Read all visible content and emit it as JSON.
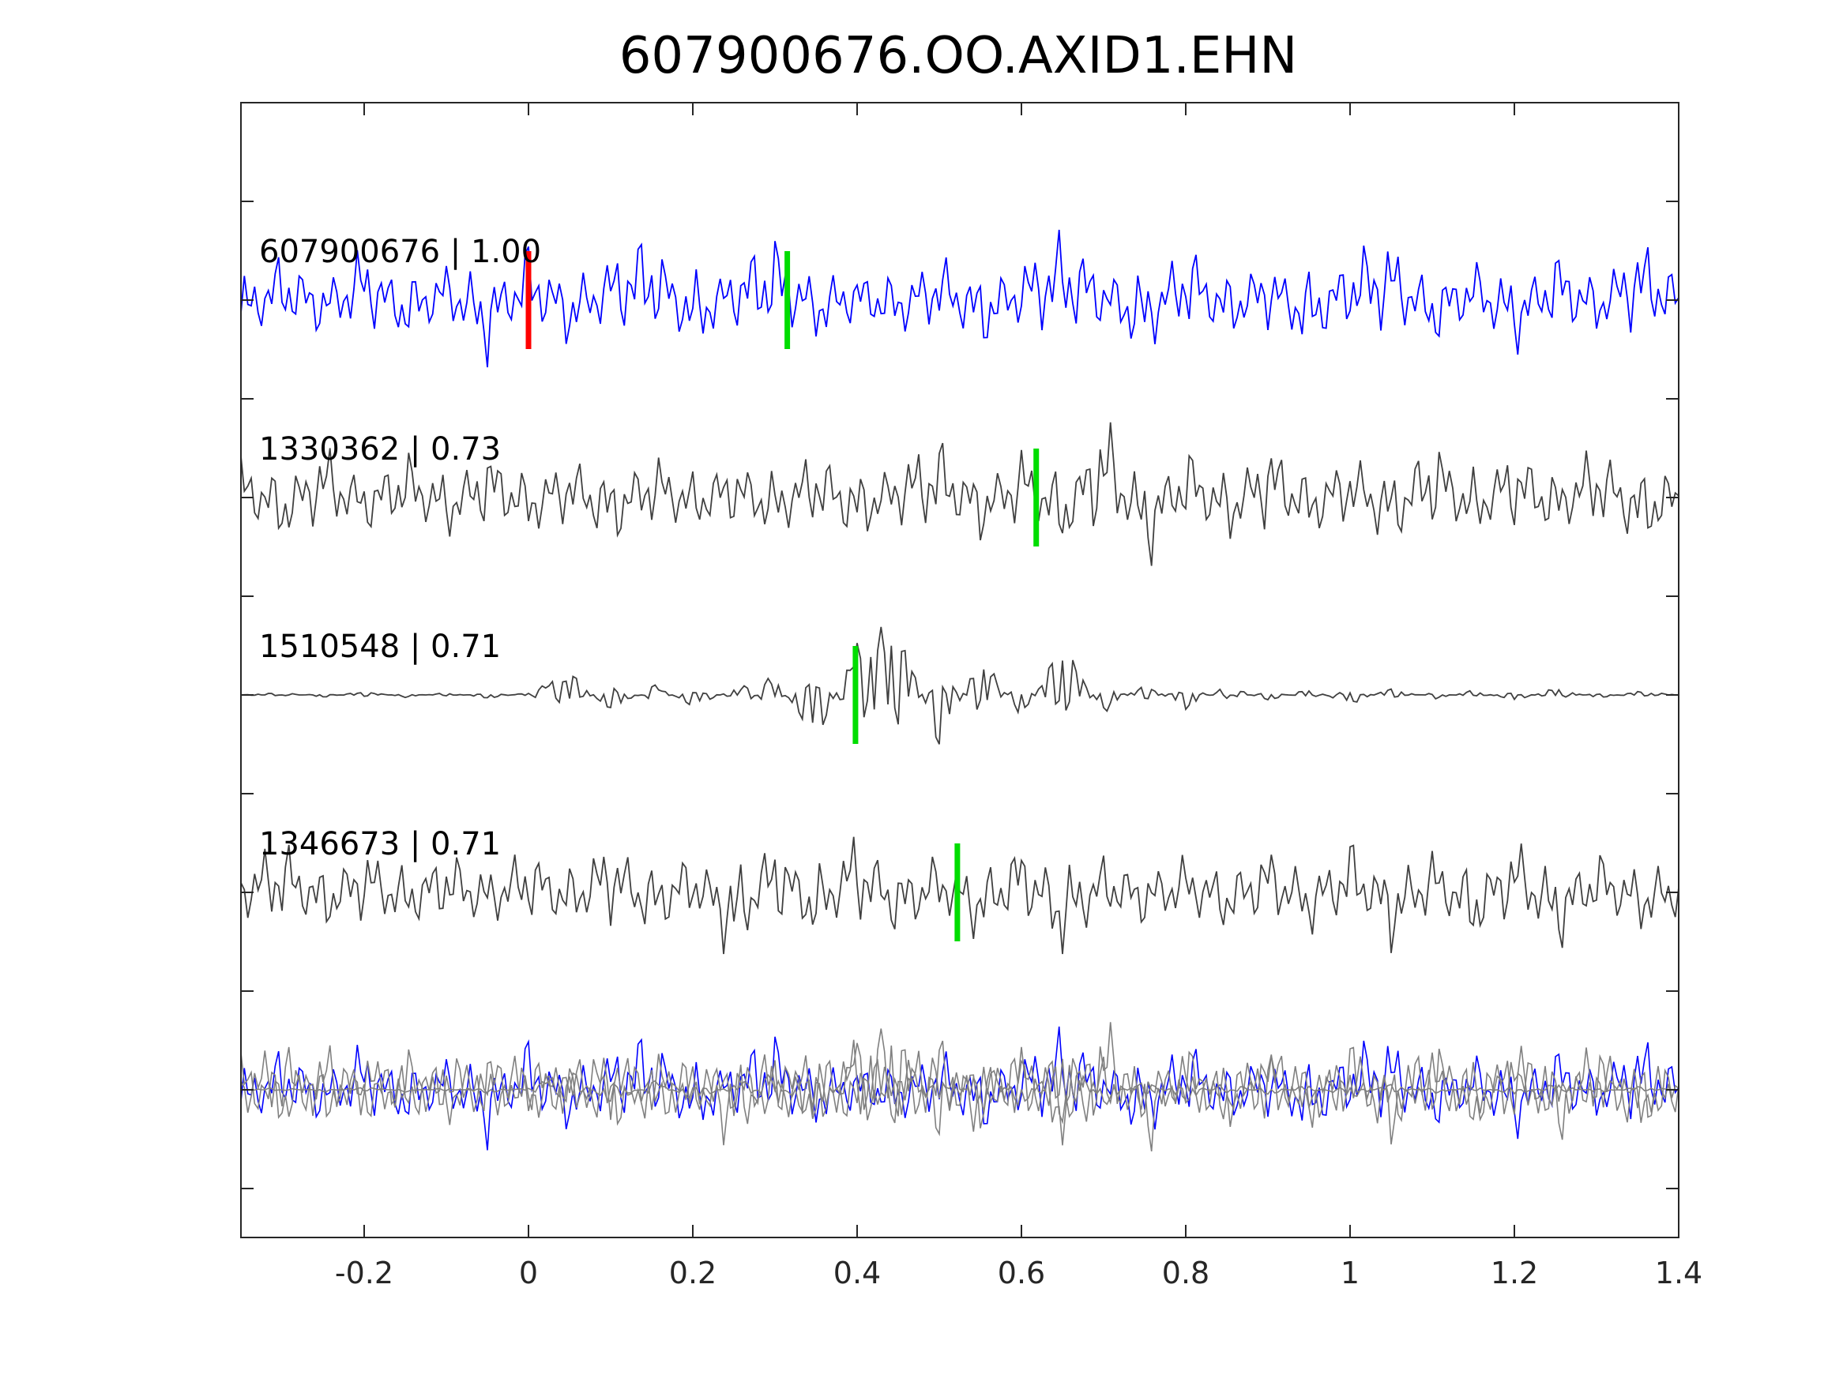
{
  "chart_data": {
    "type": "line",
    "title": "607900676.OO.AXID1.EHN",
    "xlabel": "",
    "ylabel": "",
    "xlim": [
      -0.35,
      1.4
    ],
    "xticks": [
      -0.2,
      0,
      0.2,
      0.4,
      0.6,
      0.8,
      1,
      1.2,
      1.4
    ],
    "xtick_labels": [
      "-0.2",
      "0",
      "0.2",
      "0.4",
      "0.6",
      "0.8",
      "1",
      "1.2",
      "1.4"
    ],
    "grid": false,
    "legend": "none",
    "colors": {
      "main_trace": "#0000ff",
      "other_trace": "#404040",
      "overlay_trace": "#808080",
      "reference_pick": "#ff0000",
      "pick": "#00dd00",
      "axis": "#262626"
    },
    "series": [
      {
        "label": "607900676 | 1.00",
        "color": "#0000ff",
        "reference_pick_time": 0.0,
        "pick_time": 0.315,
        "x": [
          -0.35,
          -0.3,
          -0.25,
          -0.2,
          -0.15,
          -0.1,
          -0.05,
          0.0,
          0.05,
          0.1,
          0.15,
          0.2,
          0.25,
          0.3,
          0.35,
          0.4,
          0.45,
          0.5,
          0.55,
          0.6,
          0.65,
          0.7,
          0.75,
          0.8,
          0.85,
          0.9,
          0.95,
          1.0,
          1.05,
          1.1,
          1.15,
          1.2,
          1.25,
          1.3,
          1.35,
          1.4
        ],
        "y": [
          -0.4,
          0.35,
          -0.2,
          0.45,
          -0.3,
          0.2,
          -0.55,
          0.5,
          -0.35,
          0.3,
          0.6,
          -0.45,
          0.2,
          0.55,
          -0.25,
          0.1,
          -0.2,
          0.35,
          -0.4,
          0.2,
          0.6,
          0.1,
          -0.5,
          0.55,
          -0.3,
          0.3,
          -0.45,
          0.35,
          0.5,
          -0.35,
          0.25,
          -0.45,
          0.4,
          -0.2,
          0.55,
          0.0
        ]
      },
      {
        "label": "1330362 | 0.73",
        "color": "#404040",
        "pick_time": 0.618,
        "x": [
          -0.35,
          -0.3,
          -0.25,
          -0.2,
          -0.15,
          -0.1,
          -0.05,
          0.0,
          0.05,
          0.1,
          0.15,
          0.2,
          0.25,
          0.3,
          0.35,
          0.4,
          0.45,
          0.5,
          0.55,
          0.6,
          0.65,
          0.7,
          0.75,
          0.8,
          0.85,
          0.9,
          0.95,
          1.0,
          1.05,
          1.1,
          1.15,
          1.2,
          1.25,
          1.3,
          1.35,
          1.4
        ],
        "y": [
          0.3,
          -0.35,
          0.45,
          -0.2,
          0.35,
          -0.3,
          0.4,
          -0.25,
          0.3,
          -0.4,
          0.35,
          -0.2,
          0.25,
          -0.3,
          0.4,
          -0.35,
          0.2,
          0.5,
          -0.3,
          0.4,
          -0.5,
          0.95,
          -0.75,
          0.45,
          -0.4,
          0.55,
          -0.3,
          0.35,
          -0.45,
          0.6,
          -0.35,
          0.45,
          -0.3,
          0.5,
          -0.4,
          0.0
        ]
      },
      {
        "label": "1510548 | 0.71",
        "color": "#404040",
        "pick_time": 0.398,
        "x": [
          -0.35,
          -0.3,
          -0.25,
          -0.2,
          -0.15,
          -0.1,
          -0.05,
          0.0,
          0.05,
          0.1,
          0.15,
          0.2,
          0.25,
          0.3,
          0.35,
          0.4,
          0.45,
          0.5,
          0.55,
          0.6,
          0.65,
          0.7,
          0.75,
          0.8,
          0.85,
          0.9,
          0.95,
          1.0,
          1.05,
          1.1,
          1.15,
          1.2,
          1.25,
          1.3,
          1.35,
          1.4
        ],
        "y": [
          0.0,
          0.02,
          -0.02,
          0.03,
          -0.02,
          0.02,
          -0.03,
          0.02,
          0.2,
          -0.15,
          0.1,
          -0.1,
          0.05,
          0.15,
          -0.4,
          0.45,
          0.6,
          -0.45,
          0.35,
          -0.2,
          0.45,
          -0.15,
          0.1,
          -0.12,
          0.08,
          -0.05,
          0.05,
          -0.08,
          0.06,
          -0.04,
          0.04,
          -0.05,
          0.06,
          -0.03,
          0.03,
          0.0
        ]
      },
      {
        "label": "1346673 | 0.71",
        "color": "#404040",
        "pick_time": 0.522,
        "x": [
          -0.35,
          -0.3,
          -0.25,
          -0.2,
          -0.15,
          -0.1,
          -0.05,
          0.0,
          0.05,
          0.1,
          0.15,
          0.2,
          0.25,
          0.3,
          0.35,
          0.4,
          0.45,
          0.5,
          0.55,
          0.6,
          0.65,
          0.7,
          0.75,
          0.8,
          0.85,
          0.9,
          0.95,
          1.0,
          1.05,
          1.1,
          1.15,
          1.2,
          1.25,
          1.3,
          1.35,
          1.4
        ],
        "y": [
          0.0,
          0.45,
          -0.3,
          0.35,
          -0.25,
          0.3,
          -0.2,
          0.35,
          -0.25,
          0.5,
          -0.35,
          0.3,
          -0.7,
          0.55,
          -0.45,
          0.6,
          -0.35,
          0.25,
          -0.4,
          0.45,
          -0.6,
          0.2,
          -0.15,
          0.2,
          -0.25,
          0.35,
          -0.3,
          0.45,
          -0.5,
          0.3,
          -0.45,
          0.5,
          -0.55,
          0.3,
          -0.25,
          0.0
        ]
      }
    ]
  }
}
